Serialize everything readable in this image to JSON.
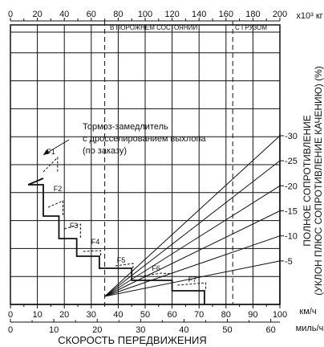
{
  "chart_data": {
    "type": "line",
    "top_axis": {
      "ticks": [
        "0",
        "20",
        "40",
        "60",
        "80",
        "100",
        "120",
        "140",
        "160",
        "180",
        "200"
      ],
      "unit": "х10³ кг",
      "range": [
        0,
        200
      ]
    },
    "bottom_axis_kmh": {
      "ticks": [
        "0",
        "10",
        "20",
        "30",
        "40",
        "50",
        "60",
        "70",
        "80",
        "90",
        "100"
      ],
      "unit": "км/ч",
      "range": [
        0,
        100
      ]
    },
    "bottom_axis_mph": {
      "ticks": [
        "0",
        "10",
        "20",
        "30",
        "40",
        "50",
        "60"
      ],
      "unit": "миль/ч",
      "range": [
        0,
        62.1
      ]
    },
    "xlabel": "СКОРОСТЬ ПЕРЕДВИЖЕНИЯ",
    "right_axis": {
      "ticks": [
        "-30",
        "-25",
        "-20",
        "-15",
        "-10",
        "-5"
      ],
      "range": [
        0,
        -30
      ]
    },
    "ylabel_line1": "ПОЛНОЕ СОПРОТИВЛЕНИЕ",
    "ylabel_line2": "(УКЛОН ПЛЮС СОПРОТИВЛЕНИЕ КАЧЕНИЮ) (%)",
    "reference_lines": [
      {
        "label": "В ПОРОЖНЕМ СОСТОЯНИИ",
        "mass": 70
      },
      {
        "label": "С ГРУЗОМ",
        "mass": 165
      }
    ],
    "grade_lines": [
      {
        "grade": -5
      },
      {
        "grade": -10
      },
      {
        "grade": -15
      },
      {
        "grade": -20
      },
      {
        "grade": -25
      },
      {
        "grade": -30
      }
    ],
    "gears": [
      "F1",
      "F2",
      "F3",
      "F4",
      "F5",
      "F6",
      "F7"
    ],
    "annotation_lines": [
      "Тормоз-замедлитель",
      "с дросселированием выхлопа",
      "(по заказу)"
    ]
  }
}
